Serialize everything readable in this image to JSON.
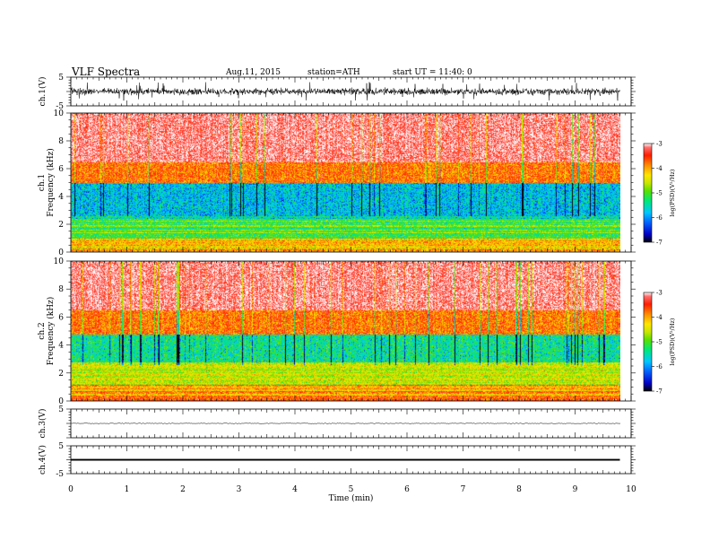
{
  "header": {
    "title": "VLF  Spectra",
    "date": "Aug.11,  2015",
    "station": "station=ATH",
    "start": "start  UT  =   11:40: 0"
  },
  "chart_data": [
    {
      "type": "line",
      "name": "ch1-waveform",
      "ylabel": "ch.1(V)",
      "ylim": [
        -5,
        5
      ],
      "ytick_labels": [
        "5",
        "-5"
      ],
      "xlim": [
        0,
        10
      ],
      "x_data_end": 9.8,
      "baseline": 0,
      "amplitude_range": [
        -1.5,
        1.5
      ]
    },
    {
      "type": "heatmap",
      "name": "ch1-spectrogram",
      "ylabel": "ch.1",
      "ylabel2": "Frequency  (kHz)",
      "ylim": [
        0,
        10
      ],
      "ytick_labels": [
        "0",
        "2",
        "4",
        "6",
        "8",
        "10"
      ],
      "xlim": [
        0,
        10
      ],
      "x_data_end": 9.8,
      "colorbar": {
        "label": "log(PSD)(V²/Hz)",
        "range": [
          -7,
          -3
        ],
        "tick_labels": [
          "-3",
          "-4",
          "-5",
          "-6",
          "-7"
        ]
      },
      "bands": [
        {
          "from_khz": 6.5,
          "to_khz": 10,
          "level": -3.3
        },
        {
          "from_khz": 5.0,
          "to_khz": 6.5,
          "level": -4.0
        },
        {
          "from_khz": 2.4,
          "to_khz": 5.0,
          "level": -5.9
        },
        {
          "from_khz": 1.0,
          "to_khz": 2.4,
          "level": -5.2
        },
        {
          "from_khz": 0,
          "to_khz": 1.0,
          "level": -4.4
        }
      ]
    },
    {
      "type": "heatmap",
      "name": "ch2-spectrogram",
      "ylabel": "ch.2",
      "ylabel2": "Frequency  (kHz)",
      "ylim": [
        0,
        10
      ],
      "ytick_labels": [
        "0",
        "2",
        "4",
        "6",
        "8",
        "10"
      ],
      "xlim": [
        0,
        10
      ],
      "x_data_end": 9.8,
      "colorbar": {
        "label": "log(PSD)(V²/Hz)",
        "range": [
          -7,
          -3
        ],
        "tick_labels": [
          "-3",
          "-4",
          "-5",
          "-6",
          "-7"
        ]
      },
      "bands": [
        {
          "from_khz": 6.5,
          "to_khz": 10,
          "level": -3.3
        },
        {
          "from_khz": 4.8,
          "to_khz": 6.5,
          "level": -4.0
        },
        {
          "from_khz": 2.8,
          "to_khz": 4.8,
          "level": -5.6
        },
        {
          "from_khz": 1.2,
          "to_khz": 2.8,
          "level": -4.8
        },
        {
          "from_khz": 0,
          "to_khz": 1.2,
          "level": -4.1
        }
      ]
    },
    {
      "type": "line",
      "name": "ch3-waveform",
      "ylabel": "ch.3(V)",
      "ylim": [
        -5,
        5
      ],
      "ytick_labels": [
        "5"
      ],
      "xlim": [
        0,
        10
      ],
      "x_data_end": 9.8,
      "baseline": 0,
      "amplitude_range": [
        -0.2,
        0.2
      ]
    },
    {
      "type": "line",
      "name": "ch4-waveform",
      "ylabel": "ch.4(V)",
      "ylim": [
        -5,
        5
      ],
      "ytick_labels": [
        "5",
        "-5"
      ],
      "xlim": [
        0,
        10
      ],
      "x_data_end": 9.8,
      "baseline": 0,
      "amplitude_range": [
        -0.3,
        0.3
      ]
    }
  ],
  "xaxis": {
    "label": "Time  (min)",
    "tick_labels": [
      "0",
      "1",
      "2",
      "3",
      "4",
      "5",
      "6",
      "7",
      "8",
      "9",
      "10"
    ]
  },
  "colors": {
    "colormap": [
      "#000000",
      "#0000c8",
      "#0064ff",
      "#00c8ff",
      "#00e878",
      "#5ae000",
      "#c8e600",
      "#ffe600",
      "#ff8c00",
      "#ff1e00",
      "#ff6e6e",
      "#ffffff"
    ],
    "trace": "#000000"
  }
}
